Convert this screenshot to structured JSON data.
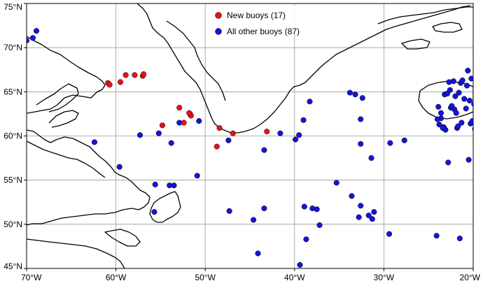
{
  "map": {
    "lon_range": [
      -70,
      -20
    ],
    "lat_range": [
      45,
      75
    ],
    "x_ticks": [
      {
        "value": -70,
        "label": "70°W"
      },
      {
        "value": -60,
        "label": "60°W"
      },
      {
        "value": -50,
        "label": "50°W"
      },
      {
        "value": -40,
        "label": "40°W"
      },
      {
        "value": -30,
        "label": "30°W"
      },
      {
        "value": -20,
        "label": "20°W"
      }
    ],
    "y_ticks": [
      {
        "value": 75,
        "label": "75°N"
      },
      {
        "value": 70,
        "label": "70°N"
      },
      {
        "value": 65,
        "label": "65°N"
      },
      {
        "value": 60,
        "label": "60°N"
      },
      {
        "value": 55,
        "label": "55°N"
      },
      {
        "value": 50,
        "label": "50°N"
      },
      {
        "value": 45,
        "label": "45°N"
      }
    ],
    "grid": true,
    "legend_position": "top-center"
  },
  "legend": {
    "new_label": "New buoys (17)",
    "other_label": "All other buoys (87)"
  },
  "colors": {
    "new": "#e8111a",
    "other": "#1515d8",
    "coast": "#000000",
    "grid": "#999999"
  },
  "chart_data": {
    "type": "scatter",
    "xlabel": "",
    "ylabel": "",
    "xlim": [
      -70,
      -20
    ],
    "ylim": [
      45,
      75
    ],
    "series": [
      {
        "name": "New buoys (17)",
        "points": [
          [
            -60.9,
            66.0
          ],
          [
            -60.7,
            65.8
          ],
          [
            -59.5,
            66.1
          ],
          [
            -58.9,
            66.9
          ],
          [
            -57.9,
            66.9
          ],
          [
            -57.0,
            66.8
          ],
          [
            -56.9,
            67.0
          ],
          [
            -52.9,
            63.2
          ],
          [
            -52.4,
            61.5
          ],
          [
            -51.7,
            62.5
          ],
          [
            -51.6,
            62.3
          ],
          [
            -54.8,
            61.2
          ],
          [
            -48.4,
            60.9
          ],
          [
            -46.9,
            60.3
          ],
          [
            -43.1,
            60.5
          ],
          [
            -48.7,
            58.8
          ],
          [
            -51.8,
            62.6
          ]
        ]
      },
      {
        "name": "All other buoys (87)",
        "points": [
          [
            -70.0,
            70.8
          ],
          [
            -69.3,
            71.1
          ],
          [
            -68.9,
            71.9
          ],
          [
            -62.4,
            59.3
          ],
          [
            -59.6,
            56.5
          ],
          [
            -57.3,
            60.1
          ],
          [
            -55.2,
            60.3
          ],
          [
            -55.6,
            54.5
          ],
          [
            -54.0,
            54.4
          ],
          [
            -53.5,
            54.4
          ],
          [
            -55.7,
            51.4
          ],
          [
            -53.8,
            59.2
          ],
          [
            -52.9,
            61.5
          ],
          [
            -50.7,
            61.7
          ],
          [
            -50.9,
            55.5
          ],
          [
            -47.4,
            59.5
          ],
          [
            -47.3,
            51.5
          ],
          [
            -44.6,
            50.5
          ],
          [
            -44.1,
            46.7
          ],
          [
            -43.4,
            51.8
          ],
          [
            -43.4,
            58.4
          ],
          [
            -41.6,
            60.3
          ],
          [
            -39.9,
            59.6
          ],
          [
            -39.5,
            60.1
          ],
          [
            -39.4,
            45.4
          ],
          [
            -38.9,
            52.0
          ],
          [
            -38.7,
            48.3
          ],
          [
            -38.3,
            63.9
          ],
          [
            -39.0,
            61.8
          ],
          [
            -38.0,
            51.8
          ],
          [
            -37.5,
            51.7
          ],
          [
            -37.2,
            49.9
          ],
          [
            -35.3,
            54.7
          ],
          [
            -33.8,
            64.9
          ],
          [
            -33.2,
            64.7
          ],
          [
            -33.6,
            53.2
          ],
          [
            -32.8,
            50.8
          ],
          [
            -32.6,
            52.1
          ],
          [
            -32.6,
            59.1
          ],
          [
            -32.4,
            64.3
          ],
          [
            -32.6,
            61.9
          ],
          [
            -31.7,
            51.0
          ],
          [
            -31.4,
            57.5
          ],
          [
            -31.3,
            50.6
          ],
          [
            -31.1,
            51.4
          ],
          [
            -29.4,
            48.9
          ],
          [
            -29.3,
            59.2
          ],
          [
            -27.7,
            59.5
          ],
          [
            -24.1,
            48.7
          ],
          [
            -23.9,
            63.3
          ],
          [
            -23.8,
            61.3
          ],
          [
            -23.6,
            62.0
          ],
          [
            -23.3,
            61.0
          ],
          [
            -23.1,
            60.7
          ],
          [
            -23.2,
            64.7
          ],
          [
            -22.8,
            57.0
          ],
          [
            -22.7,
            66.1
          ],
          [
            -22.5,
            63.2
          ],
          [
            -22.4,
            63.4
          ],
          [
            -22.2,
            66.2
          ],
          [
            -22.0,
            64.5
          ],
          [
            -21.8,
            60.9
          ],
          [
            -21.7,
            61.1
          ],
          [
            -21.4,
            66.0
          ],
          [
            -21.2,
            66.3
          ],
          [
            -21.5,
            48.4
          ],
          [
            -21.0,
            64.2
          ],
          [
            -20.7,
            65.7
          ],
          [
            -20.6,
            67.4
          ],
          [
            -20.5,
            57.3
          ],
          [
            -20.4,
            64.0
          ],
          [
            -20.3,
            61.4
          ],
          [
            -20.1,
            61.7
          ],
          [
            -19.9,
            63.6
          ],
          [
            -19.8,
            60.8
          ],
          [
            -19.7,
            60.5
          ],
          [
            -21.3,
            61.5
          ],
          [
            -22.9,
            64.8
          ],
          [
            -23.6,
            62.6
          ],
          [
            -24.0,
            61.9
          ],
          [
            -22.1,
            63.0
          ],
          [
            -21.9,
            62.6
          ],
          [
            -20.8,
            63.1
          ],
          [
            -22.6,
            65.2
          ],
          [
            -21.6,
            64.9
          ],
          [
            -23.4,
            60.9
          ],
          [
            -20.2,
            66.5
          ]
        ]
      }
    ]
  }
}
